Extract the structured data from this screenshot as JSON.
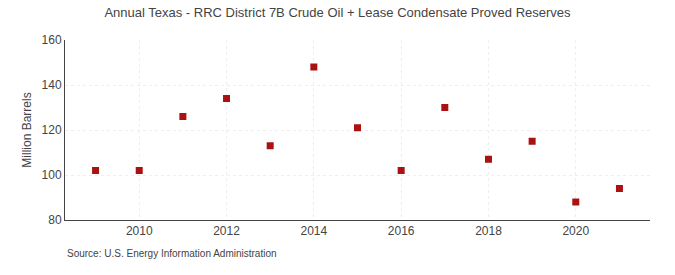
{
  "chart_data": {
    "type": "scatter",
    "title": "Annual Texas - RRC District 7B Crude Oil + Lease Condensate Proved Reserves",
    "y_label": "Million Barrels",
    "annotations": [
      "Source: U.S. Energy Information Administration"
    ],
    "x": [
      2009,
      2010,
      2011,
      2012,
      2013,
      2014,
      2015,
      2016,
      2017,
      2018,
      2019,
      2020,
      2021
    ],
    "values": [
      102,
      102,
      126,
      134,
      113,
      148,
      121,
      102,
      130,
      107,
      115,
      88,
      94
    ],
    "xlim": [
      2008.3,
      2021.7
    ],
    "xticks": [
      2010,
      2012,
      2014,
      2016,
      2018,
      2020
    ],
    "ylim": [
      80,
      160
    ],
    "yticks": [
      80,
      100,
      120,
      140,
      160
    ],
    "color": "#aa1111",
    "marker": "square",
    "grid": true
  }
}
